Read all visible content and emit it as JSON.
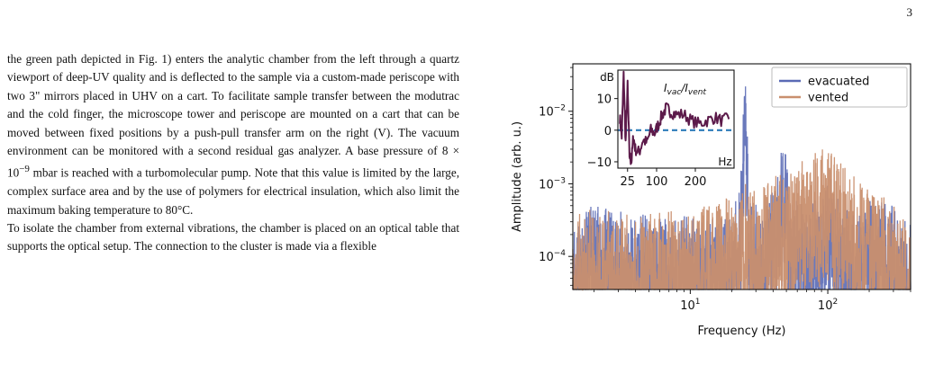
{
  "page": {
    "number": "3"
  },
  "text": {
    "p1_pre": "the green path depicted in Fig. 1) enters the analytic chamber from the left through a quartz viewport of deep-UV quality and is deflected to the sample via a custom-made periscope with two 3\" mirrors placed in UHV on a cart. To facilitate sample transfer between the modutrac and the cold finger, the microscope tower and periscope are mounted on a cart that can be moved between fixed positions by a push-pull transfer arm on the right (V). The vacuum environment can be monitored with a second residual gas analyzer. A base pressure of ",
    "p1_pressure": "8 × 10",
    "p1_pressure_exp": "−9",
    "p1_mid": " mbar is reached with a turbomolecular pump. Note that this value is limited by the large, complex surface area and by the use of polymers for electrical insulation, which also limit the maximum baking temperature to 80",
    "p1_deg": "°C.",
    "p2": "To isolate the chamber from external vibrations, the chamber is placed on an optical table that supports the optical setup. The connection to the cluster is made via a flexible"
  },
  "chart_data": [
    {
      "type": "line",
      "panel": "main",
      "xlabel": "Frequency (Hz)",
      "ylabel": "Amplitude (arb. u.)",
      "xscale": "log",
      "yscale": "log",
      "xlim": [
        1.4,
        400
      ],
      "ylim": [
        3.5e-05,
        0.045
      ],
      "xticks": [
        {
          "v": 10,
          "base": "10",
          "exp": "1"
        },
        {
          "v": 100,
          "base": "10",
          "exp": "2"
        }
      ],
      "yticks": [
        {
          "v": 0.0001,
          "base": "10",
          "exp": "−4"
        },
        {
          "v": 0.001,
          "base": "10",
          "exp": "−3"
        },
        {
          "v": 0.01,
          "base": "10",
          "exp": "−2"
        }
      ],
      "legend_position": "top-right",
      "series": [
        {
          "name": "evacuated",
          "color": "#5a6ab5",
          "values": [
            [
              1.5,
              0.00013
            ],
            [
              2,
              0.00015
            ],
            [
              3,
              0.00013
            ],
            [
              4,
              0.00012
            ],
            [
              5,
              0.00011
            ],
            [
              7,
              0.0001
            ],
            [
              10,
              0.00012
            ],
            [
              15,
              0.0001
            ],
            [
              20,
              0.00011
            ],
            [
              23,
              0.00035
            ],
            [
              25,
              0.012
            ],
            [
              27,
              0.0002
            ],
            [
              35,
              0.00015
            ],
            [
              50,
              0.0015
            ],
            [
              52,
              0.0002
            ],
            [
              75,
              0.00015
            ],
            [
              100,
              0.00045
            ],
            [
              150,
              0.00015
            ],
            [
              200,
              0.0002
            ],
            [
              300,
              0.00015
            ],
            [
              380,
              0.0001
            ]
          ]
        },
        {
          "name": "vented",
          "color": "#c98f6e",
          "values": [
            [
              1.5,
              0.00012
            ],
            [
              2,
              0.00014
            ],
            [
              3,
              0.00012
            ],
            [
              4,
              0.00011
            ],
            [
              5,
              0.00012
            ],
            [
              7,
              0.00013
            ],
            [
              10,
              0.00013
            ],
            [
              15,
              0.00017
            ],
            [
              20,
              0.0002
            ],
            [
              25,
              0.00035
            ],
            [
              30,
              0.00025
            ],
            [
              40,
              0.0004
            ],
            [
              50,
              0.0005
            ],
            [
              70,
              0.0007
            ],
            [
              85,
              0.0009
            ],
            [
              100,
              0.001
            ],
            [
              110,
              0.0008
            ],
            [
              150,
              0.0004
            ],
            [
              200,
              0.0003
            ],
            [
              300,
              0.00015
            ],
            [
              380,
              0.0001
            ]
          ]
        }
      ]
    },
    {
      "type": "line",
      "panel": "inset",
      "title_base": "I",
      "title_sub1": "vac",
      "title_sep": "/I",
      "title_sub2": "vent",
      "ylabel": "dB",
      "xunit": "Hz",
      "xlim": [
        0,
        300
      ],
      "ylim": [
        -12,
        19
      ],
      "xticks": [
        25,
        100,
        200
      ],
      "yticks": [
        -10,
        0,
        10
      ],
      "reference_line": 0,
      "series": [
        {
          "color": "#5c1a4a",
          "values": [
            [
              5,
              4
            ],
            [
              10,
              -2
            ],
            [
              15,
              18
            ],
            [
              20,
              -4
            ],
            [
              25,
              14
            ],
            [
              30,
              -8
            ],
            [
              35,
              -10
            ],
            [
              40,
              -2
            ],
            [
              45,
              -6
            ],
            [
              55,
              -7
            ],
            [
              65,
              -3
            ],
            [
              75,
              -4
            ],
            [
              85,
              0
            ],
            [
              95,
              -1
            ],
            [
              105,
              2
            ],
            [
              115,
              5
            ],
            [
              125,
              7
            ],
            [
              135,
              6
            ],
            [
              150,
              5
            ],
            [
              170,
              5
            ],
            [
              190,
              3
            ],
            [
              210,
              2
            ],
            [
              230,
              3
            ],
            [
              250,
              4
            ],
            [
              270,
              3
            ],
            [
              290,
              4
            ]
          ]
        }
      ]
    }
  ]
}
